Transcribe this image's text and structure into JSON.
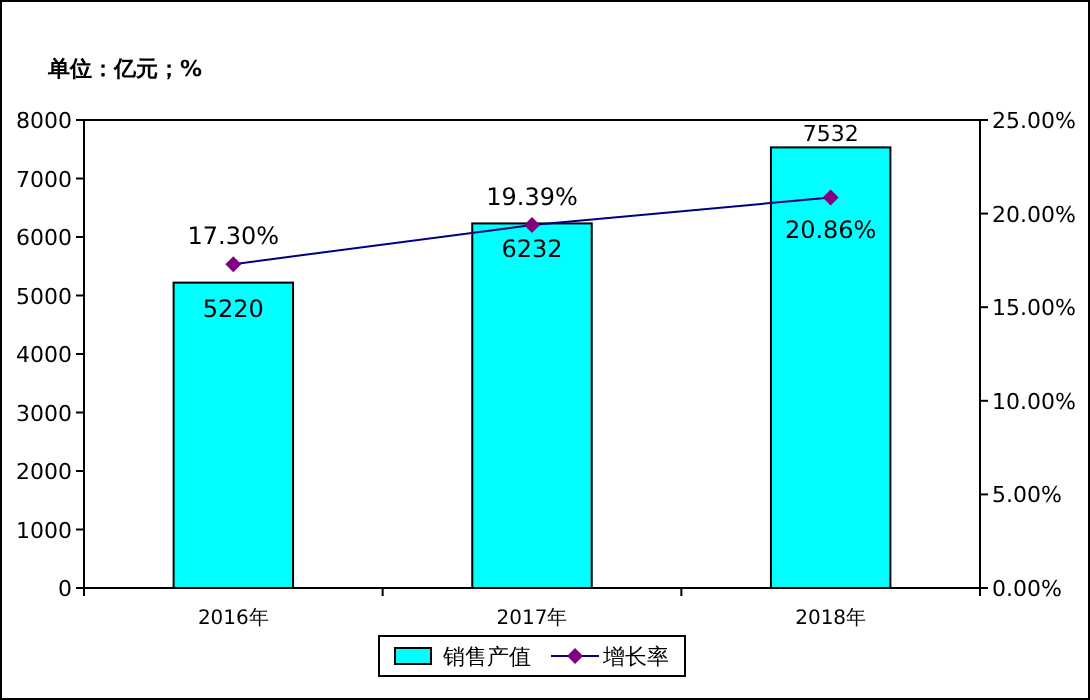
{
  "chart_data": {
    "type": "bar",
    "annotations": [
      "单位：亿元；%"
    ],
    "categories": [
      "2016年",
      "2017年",
      "2018年"
    ],
    "series": [
      {
        "name": "销售产值",
        "color": "#00ffff",
        "values": [
          5220,
          6232,
          7532
        ],
        "value_labels": [
          "5220",
          "6232",
          "7532"
        ]
      },
      {
        "name": "增长率",
        "type": "line",
        "axis": "y2",
        "color": "#000080",
        "values": [
          17.3,
          19.39,
          20.86
        ],
        "value_labels": [
          "17.30%",
          "19.39%",
          "20.86%"
        ]
      }
    ],
    "ylim": [
      0,
      8000
    ],
    "yticks": [
      0,
      1000,
      2000,
      3000,
      4000,
      5000,
      6000,
      7000,
      8000
    ],
    "y2lim": [
      0,
      25
    ],
    "y2ticks": [
      {
        "value": 0,
        "label": "0.00%"
      },
      {
        "value": 5,
        "label": "5.00%"
      },
      {
        "value": 10,
        "label": "10.00%"
      },
      {
        "value": 15,
        "label": "15.00%"
      },
      {
        "value": 20,
        "label": "20.00%"
      },
      {
        "value": 25,
        "label": "25.00%"
      }
    ],
    "marker": "diamond",
    "line_style": "solid",
    "grid": false,
    "legend": "bottom"
  }
}
